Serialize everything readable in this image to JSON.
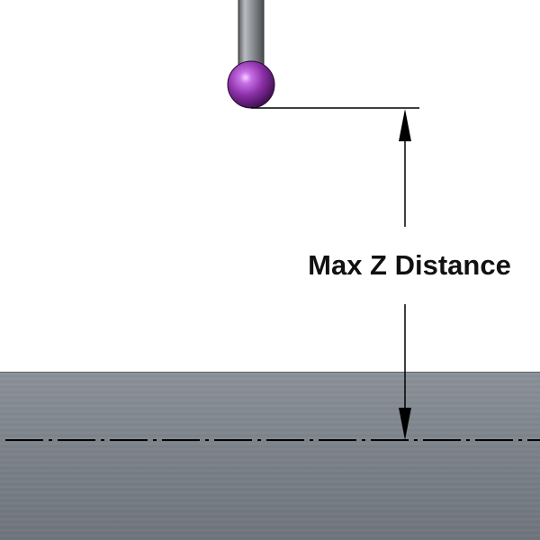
{
  "diagram": {
    "dimension_label": "Max Z Distance"
  },
  "colors": {
    "probe_shank": "#8a8c90",
    "probe_ball": "#8a2fa6",
    "workpiece_surface": "#7b8189",
    "dimension_line": "#000000"
  }
}
